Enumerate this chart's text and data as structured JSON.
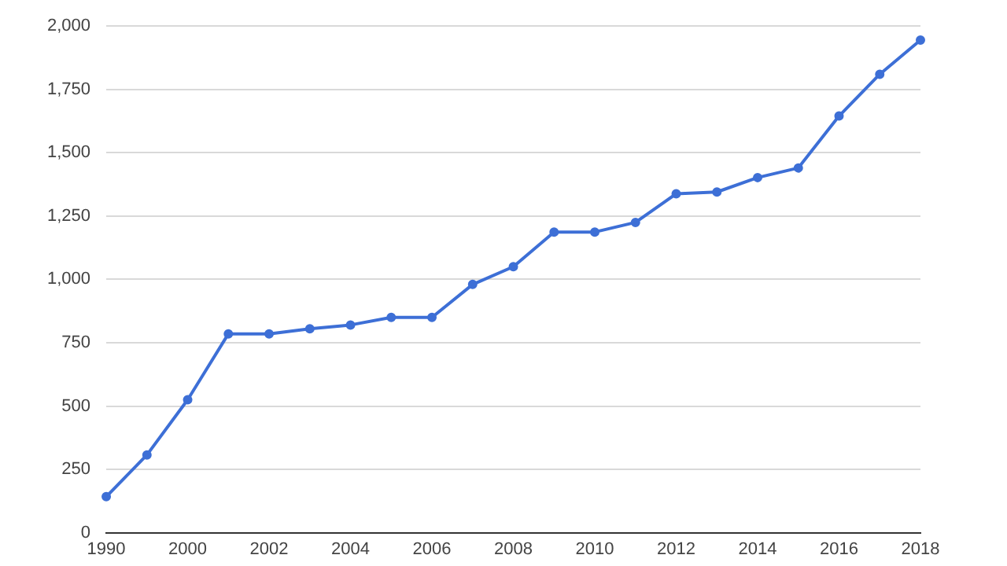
{
  "chart_data": {
    "type": "line",
    "categories": [
      "1990",
      null,
      "2000",
      null,
      "2002",
      null,
      "2004",
      null,
      "2006",
      null,
      "2008",
      null,
      "2010",
      null,
      "2012",
      null,
      "2014",
      null,
      "2016",
      null,
      "2018"
    ],
    "series": [
      {
        "color": "#3d6fd6",
        "values": [
          142,
          307,
          525,
          785,
          785,
          805,
          820,
          850,
          850,
          980,
          1050,
          1187,
          1187,
          1225,
          1338,
          1345,
          1402,
          1440,
          1645,
          1810,
          1945
        ]
      }
    ],
    "ylim": [
      0,
      2000
    ],
    "yticks": [
      {
        "value": 0,
        "label": "0"
      },
      {
        "value": 250,
        "label": "250"
      },
      {
        "value": 500,
        "label": "500"
      },
      {
        "value": 750,
        "label": "750"
      },
      {
        "value": 1000,
        "label": "1,000"
      },
      {
        "value": 1250,
        "label": "1,250"
      },
      {
        "value": 1500,
        "label": "1,500"
      },
      {
        "value": 1750,
        "label": "1,750"
      },
      {
        "value": 2000,
        "label": "2,000"
      }
    ],
    "grid": "y",
    "legend": false,
    "marker": "circle",
    "line_style": "solid"
  }
}
